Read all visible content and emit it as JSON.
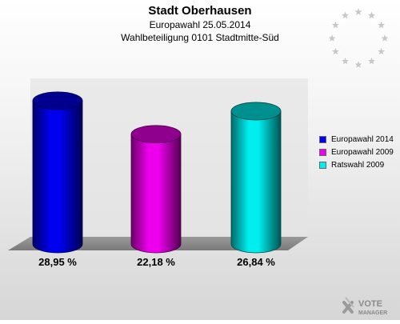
{
  "header": {
    "title": "Stadt Oberhausen",
    "subtitle1": "Europawahl 25.05.2014",
    "subtitle2": "Wahlbeteiligung 0101 Stadtmitte-Süd"
  },
  "logo": {
    "line1": "VOTE",
    "line2": "MANAGER",
    "icon": "x-icon"
  },
  "eu_flag": {
    "icon": "eu-stars-icon",
    "star_color": "#c8c8c8"
  },
  "chart_data": {
    "type": "bar",
    "title": "Stadt Oberhausen",
    "xlabel": "",
    "ylabel": "",
    "ylim": [
      0,
      32
    ],
    "grid": false,
    "legend_position": "right",
    "categories": [
      "Europawahl 2014",
      "Europawahl 2009",
      "Ratswahl 2009"
    ],
    "values": [
      28.95,
      22.18,
      26.84
    ],
    "value_labels": [
      "28,95 %",
      "22,18 %",
      "26,84 %"
    ],
    "colors": [
      "#0000ee",
      "#ee00ee",
      "#00eeee"
    ]
  }
}
